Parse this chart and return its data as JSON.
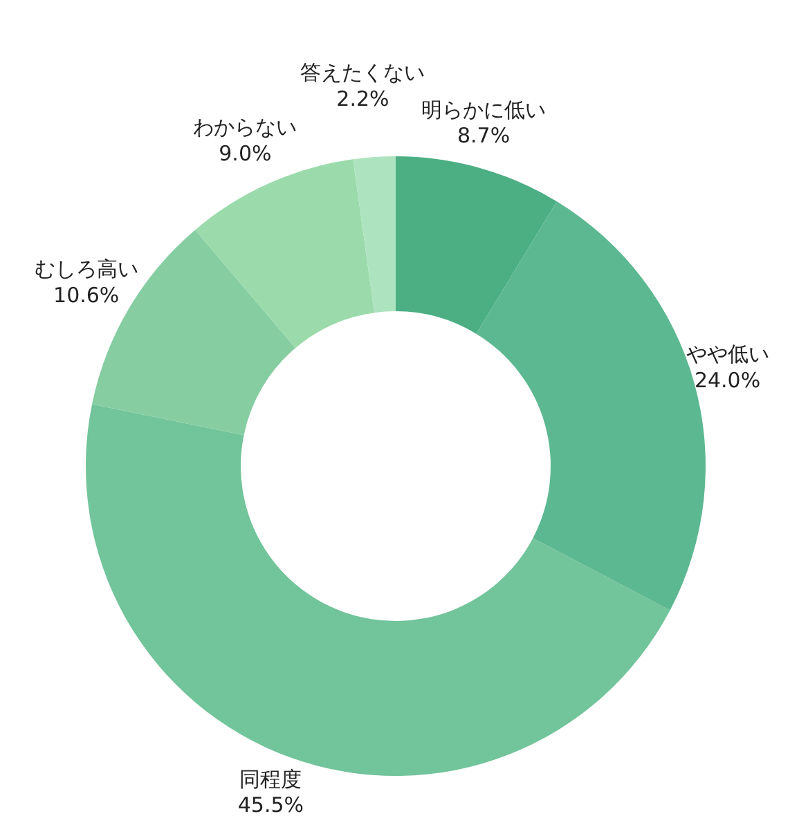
{
  "chart_data": {
    "type": "donut",
    "categories": [
      "明らかに低い",
      "やや低い",
      "同程度",
      "むしろ高い",
      "わからない",
      "答えたくない"
    ],
    "values": [
      8.7,
      24.0,
      45.5,
      10.6,
      9.0,
      2.2
    ],
    "value_labels": [
      "8.7%",
      "24.0%",
      "45.5%",
      "10.6%",
      "9.0%",
      "2.2%"
    ],
    "colors": [
      "#4caf84",
      "#5cb890",
      "#72c49a",
      "#86cda2",
      "#9bdbab",
      "#ade3bf"
    ],
    "legend": false
  }
}
